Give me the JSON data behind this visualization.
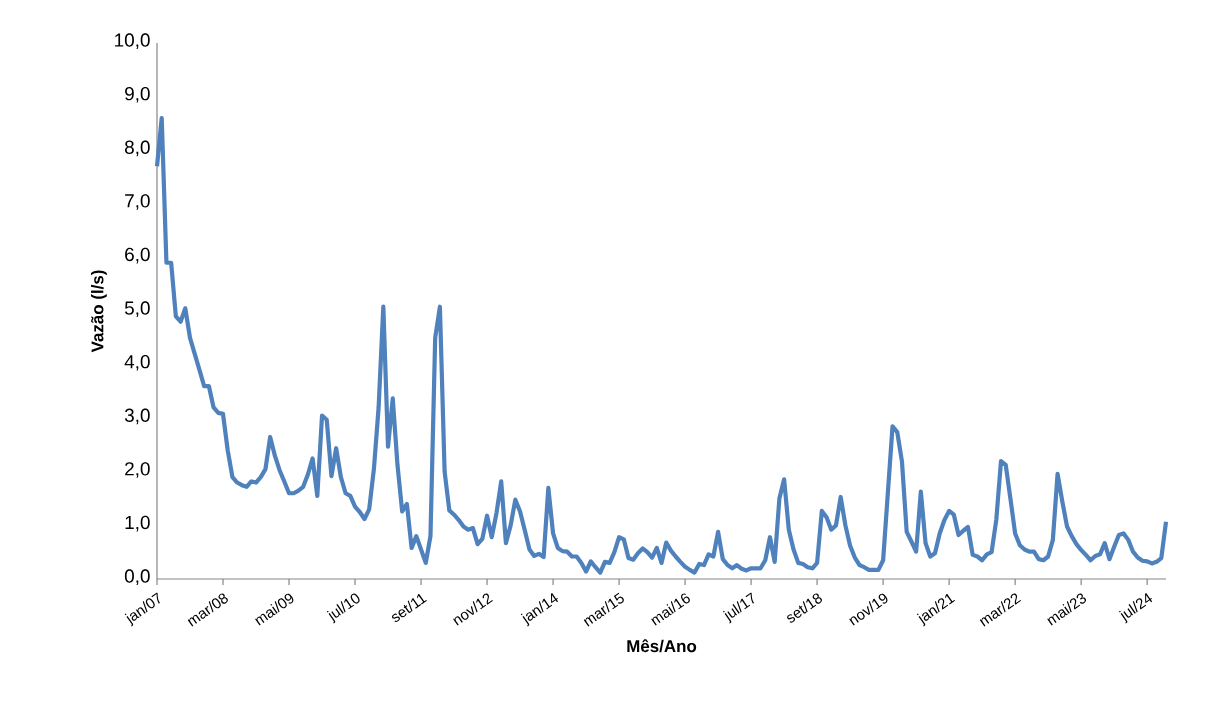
{
  "chart_data": {
    "type": "line",
    "xlabel": "Mês/Ano",
    "ylabel": "Vazão (l/s)",
    "color": "#4f81bd",
    "categories": [
      "jan/07",
      null,
      null,
      null,
      null,
      null,
      null,
      null,
      null,
      null,
      null,
      null,
      null,
      null,
      "mar/08",
      null,
      null,
      null,
      null,
      null,
      null,
      null,
      null,
      null,
      null,
      null,
      null,
      null,
      "mai/09",
      null,
      null,
      null,
      null,
      null,
      null,
      null,
      null,
      null,
      null,
      null,
      null,
      null,
      "jul/10",
      null,
      null,
      null,
      null,
      null,
      null,
      null,
      null,
      null,
      null,
      null,
      null,
      null,
      "set/11",
      null,
      null,
      null,
      null,
      null,
      null,
      null,
      null,
      null,
      null,
      null,
      null,
      null,
      "nov/12",
      null,
      null,
      null,
      null,
      null,
      null,
      null,
      null,
      null,
      null,
      null,
      null,
      null,
      "jan/14",
      null,
      null,
      null,
      null,
      null,
      null,
      null,
      null,
      null,
      null,
      null,
      null,
      null,
      "mar/15",
      null,
      null,
      null,
      null,
      null,
      null,
      null,
      null,
      null,
      null,
      null,
      null,
      null,
      "mai/16",
      null,
      null,
      null,
      null,
      null,
      null,
      null,
      null,
      null,
      null,
      null,
      null,
      null,
      "jul/17",
      null,
      null,
      null,
      null,
      null,
      null,
      null,
      null,
      null,
      null,
      null,
      null,
      null,
      "set/18",
      null,
      null,
      null,
      null,
      null,
      null,
      null,
      null,
      null,
      null,
      null,
      null,
      null,
      "nov/19",
      null,
      null,
      null,
      null,
      null,
      null,
      null,
      null,
      null,
      null,
      null,
      null,
      null,
      "jan/21",
      null,
      null,
      null,
      null,
      null,
      null,
      null,
      null,
      null,
      null,
      null,
      null,
      null,
      "mar/22",
      null,
      null,
      null,
      null,
      null,
      null,
      null,
      null,
      null,
      null,
      null,
      null,
      null,
      "mai/23",
      null,
      null,
      null,
      null,
      null,
      null,
      null,
      null,
      null,
      null,
      null,
      null,
      null,
      "jul/24",
      null,
      null,
      null,
      null
    ],
    "values": [
      7.7,
      8.6,
      5.9,
      5.9,
      4.9,
      4.8,
      5.05,
      4.5,
      4.2,
      3.9,
      3.6,
      3.6,
      3.2,
      3.1,
      3.08,
      2.4,
      1.9,
      1.8,
      1.75,
      1.72,
      1.82,
      1.8,
      1.9,
      2.05,
      2.65,
      2.3,
      2.03,
      1.82,
      1.6,
      1.6,
      1.65,
      1.72,
      1.95,
      2.25,
      1.55,
      3.05,
      2.97,
      1.92,
      2.44,
      1.9,
      1.6,
      1.55,
      1.35,
      1.25,
      1.12,
      1.3,
      2.05,
      3.2,
      5.08,
      2.47,
      3.37,
      2.13,
      1.26,
      1.4,
      0.58,
      0.8,
      0.55,
      0.3,
      0.8,
      4.5,
      5.08,
      2.0,
      1.28,
      1.2,
      1.1,
      0.98,
      0.92,
      0.95,
      0.65,
      0.75,
      1.18,
      0.78,
      1.23,
      1.82,
      0.67,
      1.0,
      1.48,
      1.26,
      0.91,
      0.55,
      0.43,
      0.47,
      0.41,
      1.7,
      0.85,
      0.58,
      0.52,
      0.51,
      0.42,
      0.42,
      0.3,
      0.14,
      0.33,
      0.22,
      0.12,
      0.32,
      0.3,
      0.5,
      0.78,
      0.74,
      0.39,
      0.36,
      0.48,
      0.57,
      0.5,
      0.4,
      0.58,
      0.3,
      0.68,
      0.53,
      0.42,
      0.32,
      0.23,
      0.17,
      0.12,
      0.28,
      0.26,
      0.46,
      0.42,
      0.88,
      0.37,
      0.26,
      0.2,
      0.26,
      0.19,
      0.16,
      0.2,
      0.2,
      0.2,
      0.35,
      0.78,
      0.32,
      1.5,
      1.86,
      0.92,
      0.55,
      0.3,
      0.28,
      0.22,
      0.2,
      0.3,
      1.27,
      1.15,
      0.92,
      1.0,
      1.53,
      1.0,
      0.62,
      0.4,
      0.26,
      0.22,
      0.17,
      0.17,
      0.17,
      0.35,
      1.6,
      2.85,
      2.74,
      2.19,
      0.88,
      0.7,
      0.51,
      1.63,
      0.67,
      0.42,
      0.48,
      0.85,
      1.1,
      1.27,
      1.2,
      0.82,
      0.9,
      0.97,
      0.45,
      0.42,
      0.35,
      0.46,
      0.5,
      1.1,
      2.2,
      2.13,
      1.5,
      0.85,
      0.63,
      0.55,
      0.51,
      0.51,
      0.37,
      0.35,
      0.42,
      0.73,
      1.96,
      1.45,
      0.98,
      0.8,
      0.65,
      0.54,
      0.45,
      0.35,
      0.43,
      0.46,
      0.67,
      0.37,
      0.6,
      0.82,
      0.85,
      0.73,
      0.51,
      0.4,
      0.34,
      0.33,
      0.29,
      0.32,
      0.39,
      1.07
    ],
    "ylim": [
      0,
      10
    ],
    "yticks": [
      {
        "value": 0,
        "label": "0,0"
      },
      {
        "value": 1,
        "label": "1,0"
      },
      {
        "value": 2,
        "label": "2,0"
      },
      {
        "value": 3,
        "label": "3,0"
      },
      {
        "value": 4,
        "label": "4,0"
      },
      {
        "value": 5,
        "label": "5,0"
      },
      {
        "value": 6,
        "label": "6,0"
      },
      {
        "value": 7,
        "label": "7,0"
      },
      {
        "value": 8,
        "label": "8,0"
      },
      {
        "value": 9,
        "label": "9,0"
      },
      {
        "value": 10,
        "label": "10,0"
      }
    ]
  }
}
